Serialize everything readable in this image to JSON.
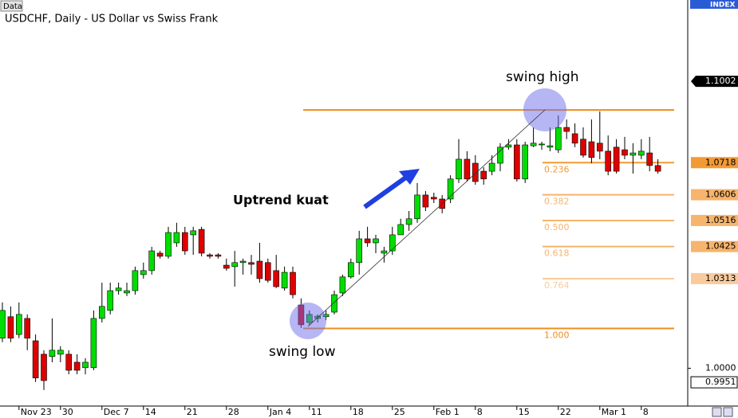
{
  "chart_data": {
    "type": "candlestick",
    "title": "USDCHF, Daily - US Dollar vs Swiss Frank",
    "button": "Data",
    "panel_label": "INDEX",
    "categories": [
      null,
      null,
      "Nov 23",
      null,
      null,
      null,
      null,
      "30",
      null,
      null,
      null,
      null,
      "Dec 7",
      null,
      null,
      null,
      null,
      "14",
      null,
      null,
      null,
      null,
      "21",
      null,
      null,
      null,
      null,
      "28",
      null,
      null,
      null,
      null,
      "Jan 4",
      null,
      null,
      null,
      null,
      "11",
      null,
      null,
      null,
      null,
      "18",
      null,
      null,
      null,
      null,
      "25",
      null,
      null,
      null,
      null,
      "Feb 1",
      null,
      null,
      null,
      null,
      "8",
      null,
      null,
      null,
      null,
      "15",
      null,
      null,
      null,
      null,
      "22",
      null,
      null,
      null,
      null,
      "Mar 1",
      null,
      null,
      null,
      null,
      "8",
      null,
      null
    ],
    "open": [
      1.0105,
      1.018,
      1.0118,
      1.0174,
      1.0096,
      1.0049,
      1.0041,
      1.0049,
      1.0049,
      1.0021,
      1.0002,
      1.0002,
      1.0174,
      1.0202,
      1.0271,
      1.0263,
      1.0271,
      1.0327,
      1.0341,
      1.0402,
      1.0391,
      1.0438,
      1.0474,
      1.0466,
      1.0485,
      1.0396,
      1.0396,
      1.036,
      1.0355,
      1.0369,
      1.0369,
      1.0374,
      1.0369,
      1.0341,
      1.028,
      1.0335,
      1.0221,
      1.016,
      1.0174,
      1.018,
      1.0196,
      1.0263,
      1.0319,
      1.0369,
      1.0452,
      1.0438,
      1.0402,
      1.041,
      1.0466,
      1.0502,
      1.0522,
      1.0605,
      1.0597,
      1.0591,
      1.0591,
      1.0661,
      1.073,
      1.0716,
      1.0688,
      1.0688,
      1.0716,
      1.0772,
      1.078,
      1.0661,
      1.0777,
      1.078,
      1.0772,
      1.0763,
      1.0841,
      1.0819,
      1.08,
      1.0791,
      1.0786,
      1.0758,
      1.0772,
      1.0763,
      1.0744,
      1.0744,
      1.0752,
      1.0708
    ],
    "high": [
      1.023,
      1.0216,
      1.023,
      1.0188,
      1.0118,
      1.0063,
      1.0174,
      1.0077,
      1.0063,
      1.0049,
      1.0035,
      1.0202,
      1.0299,
      1.0299,
      1.0299,
      1.0299,
      1.0355,
      1.0369,
      1.0424,
      1.041,
      1.0494,
      1.0508,
      1.0494,
      1.0494,
      1.0494,
      1.0402,
      1.0402,
      1.0383,
      1.041,
      1.0383,
      1.0396,
      1.0438,
      1.0383,
      1.0396,
      1.0355,
      1.0355,
      1.0244,
      1.0202,
      1.0188,
      1.0202,
      1.0271,
      1.0327,
      1.0383,
      1.048,
      1.0494,
      1.0466,
      1.0424,
      1.0494,
      1.0522,
      1.0549,
      1.0647,
      1.0619,
      1.0613,
      1.0605,
      1.0674,
      1.08,
      1.0758,
      1.0744,
      1.0702,
      1.0744,
      1.0786,
      1.08,
      1.08,
      1.0791,
      1.0841,
      1.0791,
      1.0841,
      1.0883,
      1.0869,
      1.0855,
      1.0841,
      1.0869,
      1.0897,
      1.0813,
      1.08,
      1.0808,
      1.0786,
      1.08,
      1.0808,
      1.073
    ],
    "low": [
      1.0091,
      1.0091,
      1.0105,
      1.0063,
      0.9952,
      0.9924,
      1.0021,
      1.0021,
      0.9979,
      0.9979,
      0.9979,
      0.9993,
      1.016,
      1.0188,
      1.0257,
      1.0252,
      1.0257,
      1.0313,
      1.0327,
      1.0383,
      1.0383,
      1.0424,
      1.0396,
      1.0396,
      1.0391,
      1.0383,
      1.0383,
      1.0341,
      1.0285,
      1.0327,
      1.0327,
      1.0299,
      1.0299,
      1.028,
      1.0271,
      1.0244,
      1.0141,
      1.0152,
      1.016,
      1.0168,
      1.0188,
      1.0252,
      1.0313,
      1.0327,
      1.0424,
      1.0402,
      1.0369,
      1.0396,
      1.048,
      1.048,
      1.0508,
      1.0549,
      1.0577,
      1.0541,
      1.0577,
      1.0647,
      1.0652,
      1.0641,
      1.0641,
      1.0674,
      1.0688,
      1.0763,
      1.0652,
      1.0647,
      1.0772,
      1.0763,
      1.0758,
      1.0752,
      1.08,
      1.0772,
      1.0736,
      1.0716,
      1.073,
      1.0674,
      1.068,
      1.073,
      1.068,
      1.073,
      1.0688,
      1.068
    ],
    "close": [
      1.0202,
      1.0105,
      1.0188,
      1.0105,
      0.9966,
      0.9957,
      1.0063,
      1.0063,
      0.9993,
      0.9993,
      1.0021,
      1.0174,
      1.0216,
      1.0271,
      1.028,
      1.0271,
      1.0341,
      1.0341,
      1.041,
      1.0391,
      1.0474,
      1.0474,
      1.041,
      1.048,
      1.0402,
      1.0391,
      1.0391,
      1.0349,
      1.0369,
      1.0374,
      1.0363,
      1.0313,
      1.0307,
      1.0285,
      1.0335,
      1.0257,
      1.0152,
      1.0188,
      1.0182,
      1.0188,
      1.0257,
      1.0319,
      1.0369,
      1.0452,
      1.0438,
      1.0452,
      1.041,
      1.0466,
      1.0502,
      1.0522,
      1.0605,
      1.0563,
      1.0591,
      1.0558,
      1.0661,
      1.073,
      1.0661,
      1.0652,
      1.0661,
      1.0716,
      1.0772,
      1.078,
      1.0661,
      1.078,
      1.0786,
      1.0783,
      1.0777,
      1.0841,
      1.0827,
      1.0786,
      1.0744,
      1.0736,
      1.0758,
      1.0688,
      1.0688,
      1.0744,
      1.0752,
      1.0758,
      1.0708,
      1.0688
    ],
    "up_color": "#00dd00",
    "down_color": "#dd0000",
    "ylim": [
      0.9868,
      1.1286
    ],
    "yticks": [
      {
        "value": 1.0,
        "label": "1.0000"
      }
    ],
    "current_price": {
      "value": 1.1002,
      "label": "1.1002"
    },
    "low_marker": {
      "value": 0.9951,
      "label": "0.9951"
    },
    "fibonacci": {
      "high": 1.0902,
      "color": "#f08c1e",
      "levels": [
        {
          "ratio_label": "0.236",
          "value": 1.0718,
          "label": "1.0718",
          "color": "#f39a35"
        },
        {
          "ratio_label": "0.382",
          "value": 1.0606,
          "label": "1.0606",
          "color": "#f7b46c"
        },
        {
          "ratio_label": "0.500",
          "value": 1.0516,
          "label": "1.0516",
          "color": "#f7b46c"
        },
        {
          "ratio_label": "0.618",
          "value": 1.0425,
          "label": "1.0425",
          "color": "#f7b46c"
        },
        {
          "ratio_label": "0.764",
          "value": 1.0313,
          "label": "1.0313",
          "color": "#f9cb9c"
        },
        {
          "ratio_label": "1.000",
          "value": 1.0139,
          "color": "#f08c1e"
        }
      ]
    },
    "annotations": {
      "swing_high": "swing high",
      "swing_low": "swing low",
      "trend": "Uptrend kuat"
    }
  }
}
